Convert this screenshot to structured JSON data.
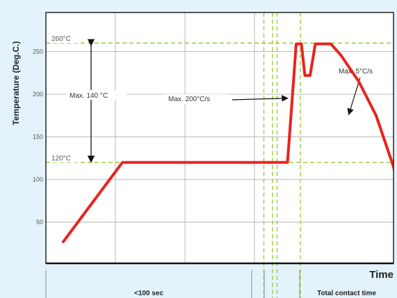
{
  "chart_data": {
    "type": "line",
    "title": "",
    "xlabel": "Time",
    "ylabel": "Temperature (Deg.C.)",
    "ylim": [
      0,
      280
    ],
    "y_ticks": [
      50,
      100,
      150,
      200,
      250
    ],
    "grid": true,
    "series": [
      {
        "color": "#e8231e",
        "points": [
          [
            0.05,
            27
          ],
          [
            0.22,
            120
          ],
          [
            0.695,
            120
          ],
          [
            0.705,
            175
          ],
          [
            0.72,
            259
          ],
          [
            0.735,
            259
          ],
          [
            0.745,
            222
          ],
          [
            0.76,
            222
          ],
          [
            0.775,
            259
          ],
          [
            0.82,
            259
          ],
          [
            0.85,
            245
          ],
          [
            0.9,
            215
          ],
          [
            0.95,
            175
          ],
          [
            1.0,
            115
          ],
          [
            1.05,
            25
          ]
        ]
      }
    ],
    "reference_lines": [
      {
        "value": 260,
        "label": "260°C"
      },
      {
        "value": 120,
        "label": "120°C"
      }
    ],
    "annotations": [
      {
        "text": "Max. 140 °C",
        "kind": "range-arrow",
        "from": 120,
        "to": 260
      },
      {
        "text": "Max. 200°C/s",
        "kind": "pointer",
        "target": [
          0.705,
          175
        ]
      },
      {
        "text": "Max. 5°C/s",
        "kind": "pointer",
        "target": [
          0.95,
          175
        ]
      }
    ],
    "x_segments": [
      {
        "label": "<100 sec"
      },
      {
        "label": ""
      },
      {
        "label": "Total contact time"
      }
    ]
  }
}
